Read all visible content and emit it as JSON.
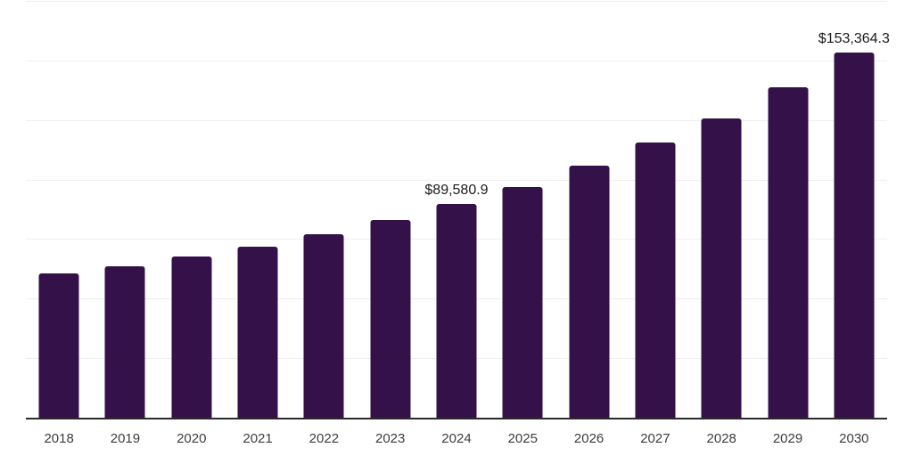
{
  "chart_data": {
    "type": "bar",
    "title": "",
    "xlabel": "",
    "ylabel": "",
    "categories": [
      "2018",
      "2019",
      "2020",
      "2021",
      "2022",
      "2023",
      "2024",
      "2025",
      "2026",
      "2027",
      "2028",
      "2029",
      "2030"
    ],
    "values": [
      60700,
      63700,
      67800,
      71900,
      77200,
      82900,
      89580.9,
      96700,
      105700,
      115400,
      125500,
      138600,
      153364.3
    ],
    "data_labels": [
      "",
      "",
      "",
      "",
      "",
      "",
      "$89,580.9",
      "",
      "",
      "",
      "",
      "",
      "$153,364.3"
    ],
    "ylim": [
      0,
      175000
    ],
    "gridline_step": 25000,
    "grid": true,
    "legend_position": "none",
    "y_tick_labels_visible": false
  },
  "style": {
    "bar_color": "#351149",
    "gridline_color": "#efefef",
    "axis_line_color": "#2b2b2b",
    "data_label_color": "#1a1a1a",
    "tick_label_color": "#3d3d3d",
    "background_color": "#ffffff"
  }
}
